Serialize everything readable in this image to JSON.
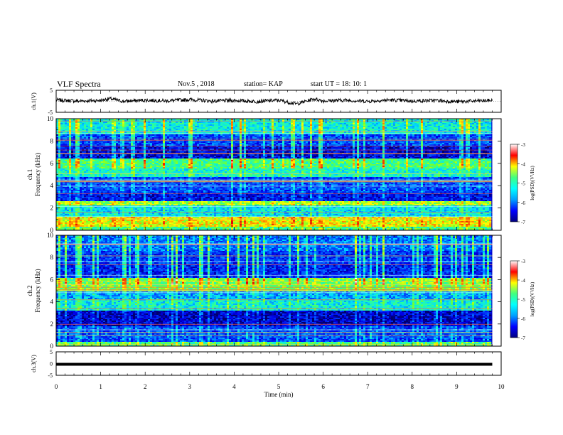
{
  "header": {
    "title": "VLF Spectra",
    "date": "Nov.5 , 2018",
    "station": "station= KAP",
    "start": "start UT = 18: 10: 1"
  },
  "panels": {
    "ch1_wave_label": "ch.1(V)",
    "ch1_spec_label": "ch.1\nFrequency (kHz)",
    "ch2_spec_label": "ch.2\nFrequency (kHz)",
    "ch3_wave_label": "ch.3(V)"
  },
  "colorbar": {
    "label": "log(PSD)(V²/Hz)",
    "ticks": [
      "-3",
      "-4",
      "-5",
      "-6",
      "-7"
    ],
    "colors": [
      "#000080",
      "#0000ff",
      "#00a0ff",
      "#00ffff",
      "#40ff80",
      "#ffff00",
      "#ff0000",
      "#ffffff"
    ]
  },
  "chart_data": [
    {
      "type": "line",
      "name": "ch1-waveform",
      "ylabel": "ch.1(V)",
      "ylim": [
        -5,
        5
      ],
      "yticks": [
        "5",
        "-5"
      ],
      "xlim": [
        0,
        10
      ],
      "note_values": "noisy signal fluctuating between about -1 and +2 V over 0–9.8 min",
      "x": [
        0,
        0.5,
        1.0,
        1.2,
        1.5,
        2.0,
        2.5,
        3.0,
        3.5,
        4.0,
        4.5,
        5.0,
        5.4,
        5.8,
        6.0,
        6.5,
        7.0,
        7.5,
        8.0,
        8.5,
        9.0,
        9.5,
        9.8
      ],
      "y": [
        1.0,
        0.5,
        0.8,
        1.6,
        0.4,
        0.9,
        0.6,
        1.2,
        0.5,
        0.8,
        0.3,
        0.9,
        -0.8,
        1.5,
        0.6,
        0.9,
        0.4,
        1.0,
        0.5,
        0.8,
        0.2,
        0.6,
        0.8
      ]
    },
    {
      "type": "heatmap",
      "name": "ch1-spectrogram",
      "ylabel": "Frequency (kHz)",
      "xlim": [
        0,
        10
      ],
      "ylim": [
        0,
        10
      ],
      "yticks": [
        "10",
        "8",
        "6",
        "4",
        "2",
        "0"
      ],
      "bands_khz": [
        {
          "from": 0.0,
          "to": 0.3,
          "level": -5
        },
        {
          "from": 0.3,
          "to": 1.2,
          "level": -4.3
        },
        {
          "from": 1.2,
          "to": 2.2,
          "level": -5.5
        },
        {
          "from": 2.2,
          "to": 2.6,
          "level": -4.6
        },
        {
          "from": 2.6,
          "to": 3.4,
          "level": -6.5
        },
        {
          "from": 3.4,
          "to": 4.8,
          "level": -6.2
        },
        {
          "from": 4.8,
          "to": 5.6,
          "level": -5.3
        },
        {
          "from": 5.6,
          "to": 6.4,
          "level": -5.0
        },
        {
          "from": 6.4,
          "to": 7.6,
          "level": -6.6
        },
        {
          "from": 7.6,
          "to": 8.6,
          "level": -6.2
        },
        {
          "from": 8.6,
          "to": 10.0,
          "level": -5.4
        }
      ]
    },
    {
      "type": "heatmap",
      "name": "ch2-spectrogram",
      "ylabel": "Frequency (kHz)",
      "xlim": [
        0,
        10
      ],
      "ylim": [
        0,
        10
      ],
      "yticks": [
        "10",
        "8",
        "6",
        "4",
        "2",
        "0"
      ],
      "bands_khz": [
        {
          "from": 0.0,
          "to": 0.4,
          "level": -5.0
        },
        {
          "from": 0.4,
          "to": 1.8,
          "level": -6.2
        },
        {
          "from": 1.8,
          "to": 3.2,
          "level": -6.7
        },
        {
          "from": 3.2,
          "to": 4.2,
          "level": -5.4
        },
        {
          "from": 4.2,
          "to": 5.0,
          "level": -5.8
        },
        {
          "from": 5.0,
          "to": 6.2,
          "level": -4.8
        },
        {
          "from": 6.2,
          "to": 7.4,
          "level": -6.4
        },
        {
          "from": 7.4,
          "to": 8.6,
          "level": -6.3
        },
        {
          "from": 8.6,
          "to": 10.0,
          "level": -6.0
        }
      ]
    },
    {
      "type": "line",
      "name": "ch3-waveform",
      "ylabel": "ch.3(V)",
      "ylim": [
        -5,
        5
      ],
      "yticks": [
        "5",
        "0",
        "-5"
      ],
      "xlim": [
        0,
        10
      ],
      "x": [
        0,
        9.8
      ],
      "y": [
        0,
        0
      ]
    }
  ],
  "xaxis": {
    "label": "Time (min)",
    "ticks": [
      "0",
      "1",
      "2",
      "3",
      "4",
      "5",
      "6",
      "7",
      "8",
      "9",
      "10"
    ]
  }
}
